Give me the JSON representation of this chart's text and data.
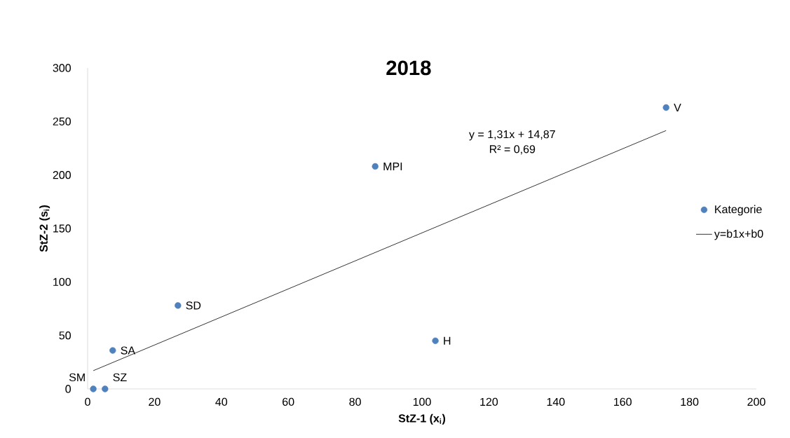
{
  "chart_data": {
    "type": "scatter",
    "title": "2018",
    "xlabel": "StZ-1 (x$_{i}$)",
    "ylabel": "StZ-2 (s$_{i}$)",
    "xlim": [
      0,
      200
    ],
    "xticks": [
      0,
      20,
      40,
      60,
      80,
      100,
      120,
      140,
      160,
      180,
      200
    ],
    "ylim": [
      0,
      300
    ],
    "yticks": [
      0,
      50,
      100,
      150,
      200,
      250,
      300
    ],
    "grid": false,
    "legend": "right",
    "series": [
      {
        "name": "Kategorie",
        "color": "#4f81bd",
        "marker": "circle",
        "x": [
          1.7,
          5.2,
          7.5,
          27,
          86,
          104,
          173
        ],
        "values": [
          0,
          0,
          36,
          78,
          208,
          45,
          263
        ],
        "value_labels": [
          "SM",
          "SZ",
          "SA",
          "SD",
          "MPI",
          "H",
          "V"
        ]
      },
      {
        "name": "y=b1x+b0",
        "type": "line",
        "color": "#000000",
        "line_style": "solid",
        "x": [
          1.7,
          173
        ],
        "values": [
          17.1,
          241.5
        ]
      }
    ],
    "annotations": [
      "y = 1,31x + 14,87",
      "R² = 0,69"
    ]
  }
}
